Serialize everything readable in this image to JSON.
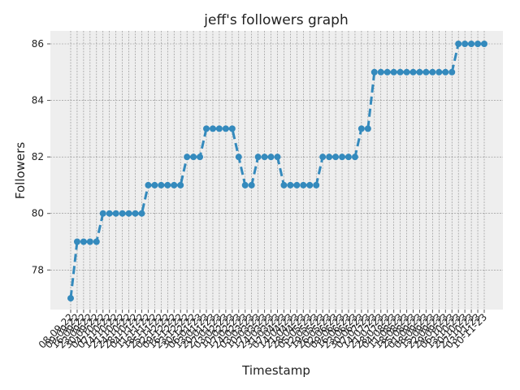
{
  "chart_data": {
    "type": "line",
    "title": "jeff's followers graph",
    "x_label": "Timestamp",
    "y_label": "Followers",
    "categories": [
      "08-09-22",
      "09-09-22",
      "16-09-22",
      "23-09-22",
      "30-09-22",
      "04-10-22",
      "07-10-22",
      "14-10-22",
      "21-10-22",
      "24-10-22",
      "28-10-22",
      "04-11-22",
      "11-11-22",
      "18-11-22",
      "25-11-22",
      "02-12-22",
      "09-12-22",
      "16-12-22",
      "23-12-22",
      "30-12-22",
      "06-01-23",
      "13-01-23",
      "20-01-23",
      "27-01-23",
      "03-02-23",
      "10-02-23",
      "17-02-23",
      "24-02-23",
      "03-03-23",
      "10-03-23",
      "17-03-23",
      "24-03-23",
      "31-03-23",
      "07-04-23",
      "14-04-23",
      "21-04-23",
      "28-04-23",
      "05-05-23",
      "12-05-23",
      "19-05-23",
      "26-05-23",
      "02-06-23",
      "09-06-23",
      "16-06-23",
      "23-06-23",
      "30-06-23",
      "07-07-23",
      "14-07-23",
      "21-07-23",
      "28-07-23",
      "04-08-23",
      "11-08-23",
      "18-08-23",
      "25-08-23",
      "01-09-23",
      "08-09-23",
      "15-09-23",
      "22-09-23",
      "29-09-23",
      "06-10-23",
      "13-10-23",
      "20-10-23",
      "27-10-23",
      "03-11-23",
      "10-11-23"
    ],
    "values": [
      77,
      79,
      79,
      79,
      79,
      80,
      80,
      80,
      80,
      80,
      80,
      80,
      81,
      81,
      81,
      81,
      81,
      81,
      82,
      82,
      82,
      83,
      83,
      83,
      83,
      83,
      82,
      81,
      81,
      82,
      82,
      82,
      82,
      81,
      81,
      81,
      81,
      81,
      81,
      82,
      82,
      82,
      82,
      82,
      82,
      83,
      83,
      85,
      85,
      85,
      85,
      85,
      85,
      85,
      85,
      85,
      85,
      85,
      85,
      85,
      86,
      86,
      86,
      86,
      86
    ],
    "color": "#348ABD",
    "ylim": [
      76.6,
      86.46
    ],
    "yticks": [
      78,
      80,
      82,
      84,
      86
    ],
    "grid": true
  }
}
